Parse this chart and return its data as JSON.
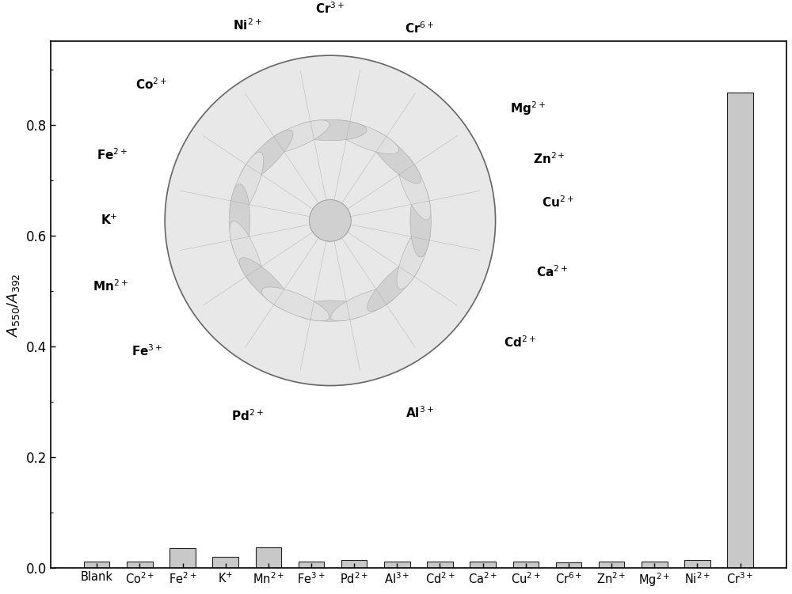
{
  "categories": [
    "Blank",
    "Co$^{2+}$",
    "Fe$^{2+}$",
    "K$^{+}$",
    "Mn$^{2+}$",
    "Fe$^{3+}$",
    "Pd$^{2+}$",
    "Al$^{3+}$",
    "Cd$^{2+}$",
    "Ca$^{2+}$",
    "Cu$^{2+}$",
    "Cr$^{6+}$",
    "Zn$^{2+}$",
    "Mg$^{2+}$",
    "Ni$^{2+}$",
    "Cr$^{3+}$"
  ],
  "values": [
    0.012,
    0.012,
    0.036,
    0.02,
    0.038,
    0.012,
    0.015,
    0.011,
    0.011,
    0.011,
    0.011,
    0.01,
    0.011,
    0.011,
    0.015,
    0.858
  ],
  "bar_color": "#c8c8c8",
  "bar_edge_color": "#222222",
  "ylim": [
    0,
    0.95
  ],
  "yticks": [
    0.0,
    0.2,
    0.4,
    0.6,
    0.8
  ],
  "ylabel": "$A_{550}$/$A_{392}$",
  "background_color": "#ffffff",
  "figure_width": 10.0,
  "figure_height": 7.51,
  "circle_labels": [
    [
      90,
      "Cr$^{3+}$"
    ],
    [
      112,
      "Ni$^{2+}$"
    ],
    [
      68,
      "Cr$^{6+}$"
    ],
    [
      135,
      "Co$^{2+}$"
    ],
    [
      38,
      "Mg$^{2+}$"
    ],
    [
      158,
      "Fe$^{2+}$"
    ],
    [
      20,
      "Zn$^{2+}$"
    ],
    [
      178,
      "K$^{+}$"
    ],
    [
      3,
      "Cu$^{2+}$"
    ],
    [
      198,
      "Mn$^{2+}$"
    ],
    [
      344,
      "Ca$^{2+}$"
    ],
    [
      218,
      "Fe$^{3+}$"
    ],
    [
      325,
      "Cd$^{2+}$"
    ],
    [
      248,
      "Pd$^{2+}$"
    ],
    [
      298,
      "Al$^{3+}$"
    ]
  ]
}
